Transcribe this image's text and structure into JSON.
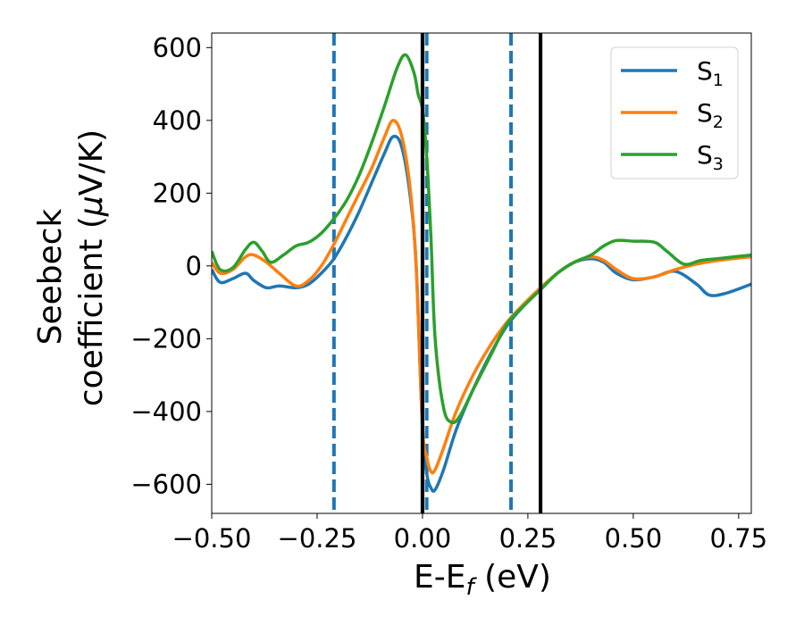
{
  "chart_data": {
    "type": "line",
    "xlabel": {
      "main": "E-E",
      "sub": "f",
      "unit": " (eV)"
    },
    "ylabel": {
      "line1": "Seebeck",
      "line2": "coefficient  (",
      "mu": "μ",
      "unit": "V/K)"
    },
    "xlim": [
      -0.5,
      0.78
    ],
    "ylim": [
      -680,
      640
    ],
    "x_ticks": [
      -0.5,
      -0.25,
      0.0,
      0.25,
      0.5,
      0.75
    ],
    "x_tick_labels": [
      "−0.50",
      "−0.25",
      "0.00",
      "0.25",
      "0.50",
      "0.75"
    ],
    "y_ticks": [
      -600,
      -400,
      -200,
      0,
      200,
      400,
      600
    ],
    "y_tick_labels": [
      "−600",
      "−400",
      "−200",
      "0",
      "200",
      "400",
      "600"
    ],
    "legend_position": "top-right",
    "grid": false,
    "vlines": [
      {
        "x": -0.21,
        "style": "dashed",
        "color": "#1f77b4"
      },
      {
        "x": 0.01,
        "style": "dashed",
        "color": "#1f77b4"
      },
      {
        "x": 0.21,
        "style": "dashed",
        "color": "#1f77b4"
      },
      {
        "x": 0.0,
        "style": "solid",
        "color": "#000000"
      },
      {
        "x": 0.28,
        "style": "solid",
        "color": "#000000"
      }
    ],
    "series": [
      {
        "name": "S",
        "sub": "1",
        "color": "#1f77b4",
        "x": [
          -0.5,
          -0.48,
          -0.45,
          -0.42,
          -0.4,
          -0.37,
          -0.34,
          -0.3,
          -0.27,
          -0.24,
          -0.21,
          -0.18,
          -0.15,
          -0.12,
          -0.09,
          -0.07,
          -0.05,
          -0.03,
          -0.015,
          0.0,
          0.01,
          0.02,
          0.03,
          0.05,
          0.08,
          0.12,
          0.16,
          0.2,
          0.24,
          0.28,
          0.32,
          0.36,
          0.4,
          0.43,
          0.46,
          0.5,
          0.55,
          0.6,
          0.65,
          0.68,
          0.72,
          0.78
        ],
        "y": [
          -10,
          -45,
          -35,
          -20,
          -40,
          -60,
          -55,
          -60,
          -50,
          -20,
          20,
          80,
          150,
          230,
          310,
          355,
          330,
          200,
          0,
          -450,
          -570,
          -610,
          -615,
          -560,
          -450,
          -340,
          -245,
          -165,
          -110,
          -65,
          -20,
          10,
          20,
          10,
          -20,
          -38,
          -30,
          -15,
          -50,
          -80,
          -75,
          -50
        ]
      },
      {
        "name": "S",
        "sub": "2",
        "color": "#ff7f0e",
        "x": [
          -0.5,
          -0.48,
          -0.45,
          -0.42,
          -0.4,
          -0.37,
          -0.34,
          -0.3,
          -0.27,
          -0.24,
          -0.21,
          -0.18,
          -0.15,
          -0.12,
          -0.09,
          -0.07,
          -0.05,
          -0.03,
          -0.015,
          0.0,
          0.01,
          0.02,
          0.03,
          0.05,
          0.08,
          0.12,
          0.16,
          0.2,
          0.24,
          0.28,
          0.32,
          0.36,
          0.4,
          0.43,
          0.46,
          0.5,
          0.55,
          0.6,
          0.65,
          0.7,
          0.78
        ],
        "y": [
          10,
          -20,
          -10,
          25,
          30,
          10,
          -20,
          -55,
          -40,
          0,
          60,
          130,
          200,
          270,
          355,
          400,
          360,
          220,
          0,
          -440,
          -525,
          -565,
          -560,
          -500,
          -400,
          -300,
          -220,
          -155,
          -105,
          -60,
          -20,
          10,
          25,
          15,
          -10,
          -35,
          -30,
          -10,
          5,
          15,
          25
        ]
      },
      {
        "name": "S",
        "sub": "3",
        "color": "#2ca02c",
        "x": [
          -0.5,
          -0.48,
          -0.45,
          -0.42,
          -0.4,
          -0.38,
          -0.36,
          -0.33,
          -0.3,
          -0.27,
          -0.24,
          -0.21,
          -0.18,
          -0.15,
          -0.12,
          -0.09,
          -0.06,
          -0.04,
          -0.02,
          -0.01,
          0.0,
          0.01,
          0.02,
          0.03,
          0.05,
          0.07,
          0.09,
          0.12,
          0.16,
          0.2,
          0.24,
          0.28,
          0.32,
          0.36,
          0.4,
          0.43,
          0.46,
          0.5,
          0.55,
          0.58,
          0.62,
          0.66,
          0.7,
          0.78
        ],
        "y": [
          40,
          -10,
          -5,
          45,
          65,
          40,
          10,
          30,
          55,
          65,
          90,
          130,
          180,
          250,
          340,
          440,
          545,
          580,
          530,
          470,
          430,
          300,
          80,
          -200,
          -390,
          -430,
          -410,
          -340,
          -250,
          -160,
          -110,
          -65,
          -20,
          10,
          30,
          55,
          70,
          68,
          65,
          40,
          5,
          15,
          20,
          30
        ]
      }
    ]
  }
}
